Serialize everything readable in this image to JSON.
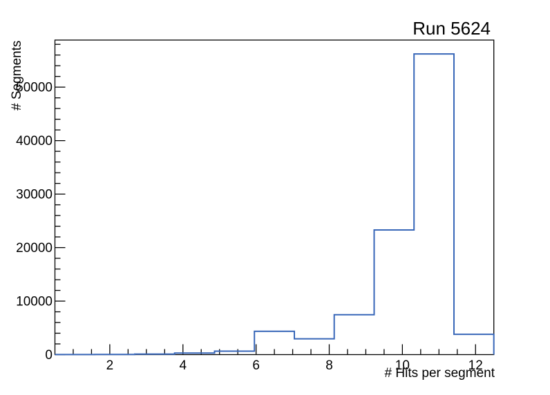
{
  "window": {
    "background": "#ffffff"
  },
  "chart_data": {
    "type": "histogram-step",
    "title": "Run 5624",
    "xlabel": "# Hits per segment",
    "ylabel": "# Segments",
    "xlim": [
      0.5,
      12.5
    ],
    "ylim": [
      0,
      58800
    ],
    "x_major_ticks": [
      2,
      4,
      6,
      8,
      10,
      12
    ],
    "x_minor_step": 0.5,
    "y_major_ticks": [
      0,
      10000,
      20000,
      30000,
      40000,
      50000
    ],
    "y_minor_step": 2000,
    "grid": "off",
    "legend": "none",
    "n_bins": 11,
    "bin_edges": [
      0.5,
      1.5909,
      2.6818,
      3.7727,
      4.8636,
      5.9545,
      7.0455,
      8.1364,
      9.2273,
      10.3182,
      11.4091,
      12.5
    ],
    "bin_centers": [
      1.05,
      2.14,
      3.23,
      4.32,
      5.41,
      6.5,
      7.59,
      8.68,
      9.77,
      10.86,
      11.95
    ],
    "bin_values": [
      15,
      40,
      90,
      300,
      650,
      4350,
      2950,
      7450,
      23300,
      56200,
      3800
    ],
    "line_color": "#3766b8",
    "frame_color": "#000000",
    "background": "#ffffff"
  }
}
